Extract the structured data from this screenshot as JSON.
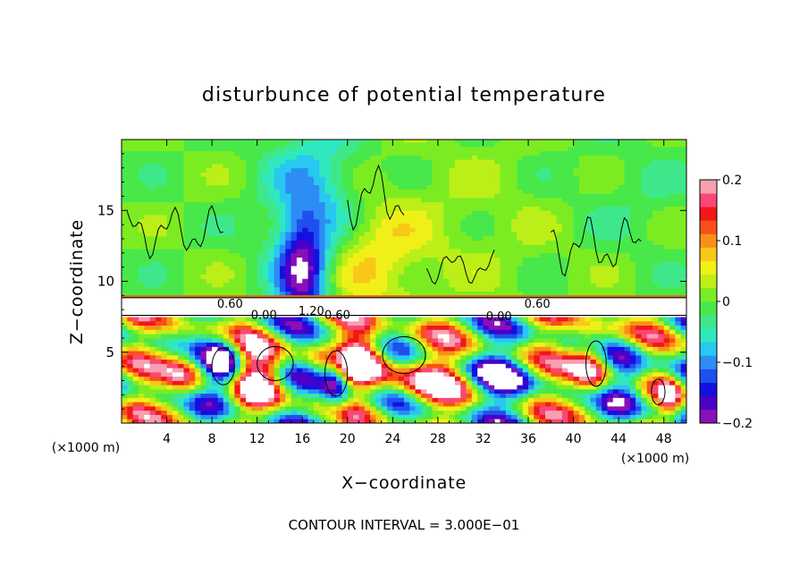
{
  "chart_data": {
    "type": "heatmap",
    "title": "disturbunce of potential temperature",
    "xlabel": "X−coordinate",
    "ylabel": "Z−coordinate",
    "x_unit_left": "(×1000 m)",
    "x_unit_right": "(×1000 m)",
    "xlim": [
      0,
      50
    ],
    "ylim": [
      0,
      20
    ],
    "x_ticks": [
      4,
      8,
      12,
      16,
      20,
      24,
      28,
      32,
      36,
      40,
      44,
      48
    ],
    "x_tick_labels": [
      "4",
      "8",
      "12",
      "16",
      "20",
      "24",
      "28",
      "32",
      "36",
      "40",
      "44",
      "48"
    ],
    "y_ticks": [
      5,
      10,
      15
    ],
    "y_tick_labels": [
      "5",
      "10",
      "15"
    ],
    "colorbar": {
      "range": [
        -0.2,
        0.2
      ],
      "ticks": [
        0.2,
        0.1,
        0,
        -0.1,
        -0.2
      ],
      "tick_labels": [
        "0.2",
        "0.1",
        "0",
        "−0.1",
        "−0.2"
      ],
      "colors": [
        "#8a10b8",
        "#4b00c8",
        "#1410e0",
        "#1e50f0",
        "#2e8cf5",
        "#28c8f0",
        "#30e8c0",
        "#3ee88a",
        "#48e84a",
        "#7cec22",
        "#bcef18",
        "#f0f018",
        "#f8c818",
        "#f89018",
        "#f85018",
        "#f01818",
        "#f84878",
        "#f8a0b0"
      ]
    },
    "contour_labels": [
      {
        "text": "0.60",
        "x": 9.6,
        "y": 8.4
      },
      {
        "text": "0.00",
        "x": 12.6,
        "y": 7.6
      },
      {
        "text": "1.20",
        "x": 16.8,
        "y": 7.9
      },
      {
        "text": "0.60",
        "x": 19.1,
        "y": 7.6
      },
      {
        "text": "0.00",
        "x": 33.4,
        "y": 7.5
      },
      {
        "text": "0.60",
        "x": 36.8,
        "y": 8.4
      }
    ],
    "fields": {
      "background_level": 0.0,
      "upper_positive_level": 0.03,
      "cold_column_center_x": 16,
      "cold_column_level": -0.18,
      "warm_plume_center_x": 22,
      "warm_plume_level": 0.06,
      "inversion_z": 8.0,
      "lower_layer_amplitude": 0.2
    }
  },
  "footer": {
    "contour_interval": "CONTOUR INTERVAL = 3.000E−01"
  }
}
